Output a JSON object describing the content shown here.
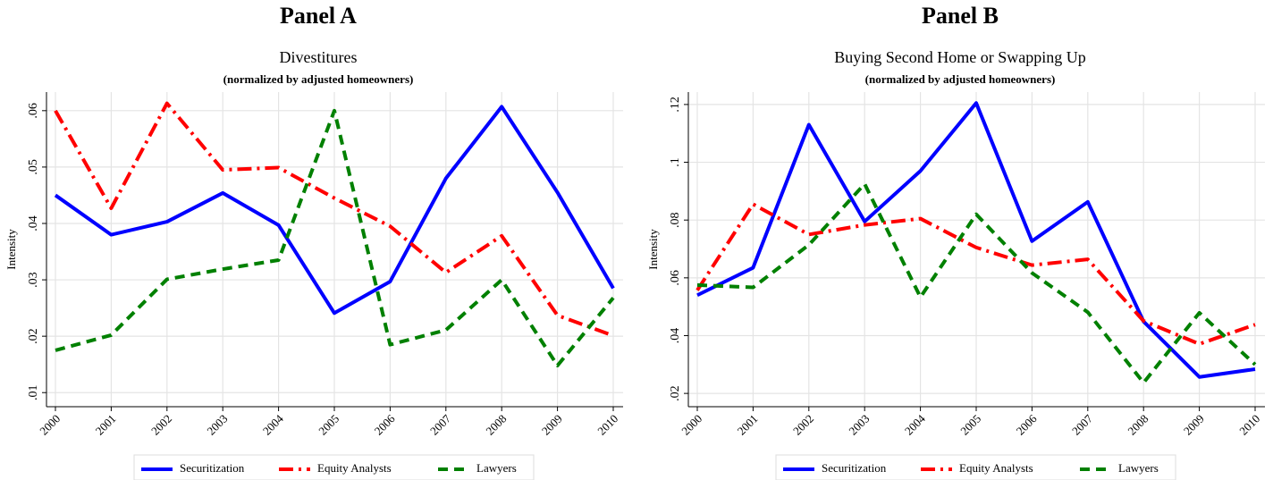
{
  "chart_data": [
    {
      "type": "line",
      "panel": "Panel A",
      "title": "Divestitures",
      "subtitle": "(normalized by adjusted homeowners)",
      "ylabel": "Intensity",
      "categories": [
        "2000",
        "2001",
        "2002",
        "2003",
        "2004",
        "2005",
        "2006",
        "2007",
        "2008",
        "2009",
        "2010"
      ],
      "ylim": [
        0.0075,
        0.0633
      ],
      "yticks": [
        {
          "value": 0.01,
          "label": ".01"
        },
        {
          "value": 0.02,
          "label": ".02"
        },
        {
          "value": 0.03,
          "label": ".03"
        },
        {
          "value": 0.04,
          "label": ".04"
        },
        {
          "value": 0.05,
          "label": ".05"
        },
        {
          "value": 0.06,
          "label": ".06"
        }
      ],
      "grid": true,
      "legend": "bottom",
      "series": [
        {
          "name": "Securitization",
          "color": "#0000ff",
          "style": "solid",
          "values": [
            0.045,
            0.038,
            0.0403,
            0.0454,
            0.0397,
            0.0241,
            0.0297,
            0.048,
            0.0607,
            0.0455,
            0.0285
          ]
        },
        {
          "name": "Equity Analysts",
          "color": "#ff0000",
          "style": "dashdot",
          "values": [
            0.06,
            0.0427,
            0.0613,
            0.0495,
            0.0499,
            0.0445,
            0.0395,
            0.0313,
            0.0378,
            0.0237,
            0.0201
          ]
        },
        {
          "name": "Lawyers",
          "color": "#008000",
          "style": "dash",
          "values": [
            0.0175,
            0.0202,
            0.0301,
            0.0319,
            0.0335,
            0.06,
            0.0185,
            0.0211,
            0.03,
            0.0148,
            0.0268
          ]
        }
      ]
    },
    {
      "type": "line",
      "panel": "Panel B",
      "title": "Buying Second Home or Swapping Up",
      "subtitle": "(normalized by adjusted homeowners)",
      "ylabel": "Intensity",
      "categories": [
        "2000",
        "2001",
        "2002",
        "2003",
        "2004",
        "2005",
        "2006",
        "2007",
        "2008",
        "2009",
        "2010"
      ],
      "ylim": [
        0.0154,
        0.1243
      ],
      "yticks": [
        {
          "value": 0.02,
          "label": ".02"
        },
        {
          "value": 0.04,
          "label": ".04"
        },
        {
          "value": 0.06,
          "label": ".06"
        },
        {
          "value": 0.08,
          "label": ".08"
        },
        {
          "value": 0.1,
          "label": ".1"
        },
        {
          "value": 0.12,
          "label": ".12"
        }
      ],
      "grid": true,
      "legend": "bottom",
      "series": [
        {
          "name": "Securitization",
          "color": "#0000ff",
          "style": "solid",
          "values": [
            0.054,
            0.0635,
            0.113,
            0.0795,
            0.097,
            0.1205,
            0.0727,
            0.0863,
            0.0449,
            0.0257,
            0.0284
          ]
        },
        {
          "name": "Equity Analysts",
          "color": "#ff0000",
          "style": "dashdot",
          "values": [
            0.0557,
            0.0855,
            0.075,
            0.0783,
            0.0805,
            0.0705,
            0.0644,
            0.0664,
            0.0451,
            0.0371,
            0.0438
          ]
        },
        {
          "name": "Lawyers",
          "color": "#008000",
          "style": "dash",
          "values": [
            0.0575,
            0.0567,
            0.0714,
            0.0925,
            0.0533,
            0.082,
            0.0617,
            0.0481,
            0.0237,
            0.0479,
            0.03
          ]
        }
      ]
    }
  ]
}
